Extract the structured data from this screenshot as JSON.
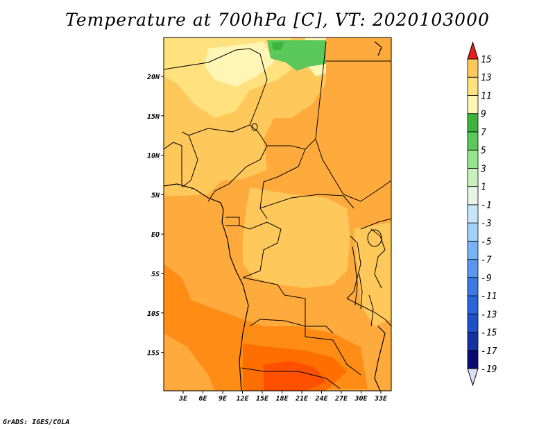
{
  "title": "Temperature at 700hPa [C], VT: 2020103000",
  "credit": "GrADS: IGES/COLA",
  "map": {
    "lat_labels": [
      "20N",
      "15N",
      "10N",
      "5N",
      "EQ",
      "5S",
      "10S",
      "15S"
    ],
    "lon_labels": [
      "3E",
      "6E",
      "9E",
      "12E",
      "15E",
      "18E",
      "21E",
      "24E",
      "27E",
      "30E",
      "33E"
    ]
  },
  "colorbar": {
    "labels": [
      "15",
      "13",
      "11",
      "9",
      "7",
      "5",
      "3",
      "1",
      "-1",
      "-3",
      "-5",
      "-7",
      "-9",
      "-11",
      "-13",
      "-15",
      "-17",
      "-19"
    ],
    "colors": [
      "#d7e2f5",
      "#0a0a70",
      "#1432a0",
      "#1e50c8",
      "#2864dc",
      "#3c78e6",
      "#5a96f0",
      "#78b4f5",
      "#a0d2fa",
      "#c8e6fa",
      "#e6f5e6",
      "#c8f0be",
      "#96e68c",
      "#5ac85a",
      "#3cb43c",
      "#fff5b4",
      "#ffe17d",
      "#ffc85a",
      "#ffaa3c",
      "#ff8c14",
      "#ff6e00",
      "#ff5000",
      "#e61e1e"
    ]
  }
}
